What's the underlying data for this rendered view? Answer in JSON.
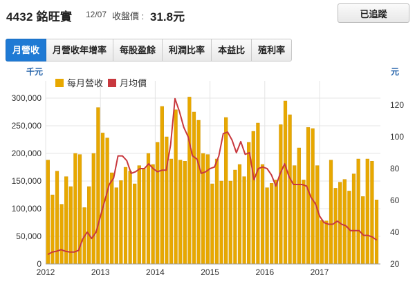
{
  "header": {
    "stock_title": "4432 銘旺實",
    "date": "12/07",
    "close_label": "收盤價 :",
    "close_price": "31.8元",
    "track_button": "已追蹤"
  },
  "tabs": [
    {
      "label": "月營收",
      "active": true
    },
    {
      "label": "月營收年增率",
      "active": false
    },
    {
      "label": "每股盈餘",
      "active": false
    },
    {
      "label": "利潤比率",
      "active": false
    },
    {
      "label": "本益比",
      "active": false
    },
    {
      "label": "殖利率",
      "active": false
    }
  ],
  "colors": {
    "bar": "#e8a800",
    "bar_edge": "#c98f00",
    "line": "#c8383e",
    "grid": "#e4e4e4",
    "tab_active": "#1f7ad4",
    "axis_unit": "#1f5fa8"
  },
  "chart_data": {
    "type": "bar+line",
    "x_start": "2012-01",
    "x_tick_labels": [
      "2012",
      "2013",
      "2014",
      "2015",
      "2016",
      "2017"
    ],
    "left_axis": {
      "unit": "千元",
      "min": 0,
      "max": 300000,
      "ticks": [
        0,
        50000,
        100000,
        150000,
        200000,
        250000,
        300000
      ],
      "tick_labels": [
        "0",
        "50,000",
        "100,000",
        "150,000",
        "200,000",
        "250,000",
        "300,000"
      ]
    },
    "right_axis": {
      "unit": "元",
      "min": 20,
      "max": 130,
      "ticks": [
        20,
        40,
        60,
        80,
        100,
        120
      ],
      "tick_labels": [
        "20",
        "40",
        "60",
        "80",
        "100",
        "120"
      ]
    },
    "legend": {
      "placement": "top-left"
    },
    "grid": true,
    "series": [
      {
        "name": "每月營收",
        "kind": "bar",
        "axis": "left",
        "values": [
          188000,
          125000,
          168000,
          108000,
          158000,
          140000,
          200000,
          198000,
          102000,
          140000,
          200000,
          283000,
          237000,
          228000,
          165000,
          138000,
          151000,
          175000,
          168000,
          145000,
          178000,
          172000,
          200000,
          180000,
          220000,
          285000,
          230000,
          190000,
          279000,
          188000,
          186000,
          302000,
          275000,
          260000,
          200000,
          198000,
          145000,
          190000,
          150000,
          265000,
          150000,
          170000,
          180000,
          158000,
          220000,
          240000,
          255000,
          180000,
          138000,
          146000,
          152000,
          252000,
          295000,
          270000,
          178000,
          210000,
          152000,
          247000,
          245000,
          178000,
          79000,
          78000,
          188000,
          137000,
          148000,
          153000,
          132000,
          163000,
          190000,
          122000,
          190000,
          186000,
          116000
        ]
      },
      {
        "name": "月均價",
        "kind": "line",
        "axis": "right",
        "values": [
          26,
          27.5,
          28,
          29,
          28,
          27.5,
          27.5,
          28.5,
          36,
          40,
          36,
          40,
          50,
          60,
          70,
          74,
          88,
          88,
          85,
          77,
          78,
          80,
          80,
          83,
          80,
          78,
          79,
          79,
          95,
          124,
          116,
          106,
          100,
          88,
          86,
          77,
          78,
          80,
          81,
          88,
          102,
          103,
          98,
          90,
          97,
          89,
          90,
          73,
          80,
          81,
          80,
          76,
          69,
          77,
          83,
          75,
          70,
          70,
          70,
          69,
          62,
          58,
          50,
          46,
          45,
          45,
          47,
          45,
          44,
          41,
          41,
          41,
          38,
          38,
          37,
          35
        ]
      }
    ]
  }
}
